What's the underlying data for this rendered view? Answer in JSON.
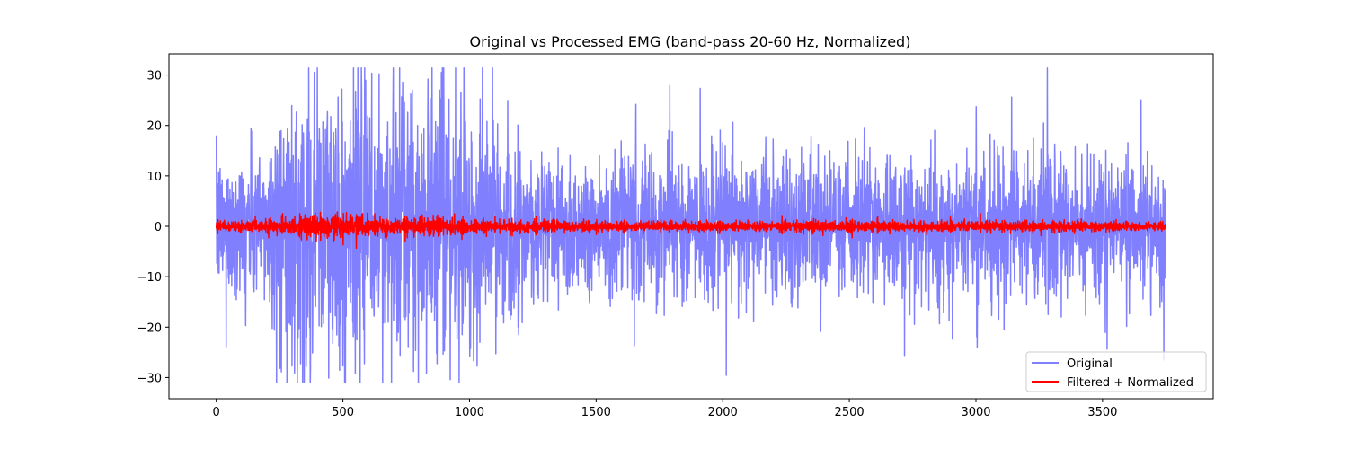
{
  "chart_data": {
    "type": "line",
    "title": "Original vs Processed EMG (band-pass 20-60 Hz, Normalized)",
    "xlabel": "",
    "ylabel": "",
    "xlim": [
      -187,
      3937
    ],
    "ylim": [
      -34.2,
      34.2
    ],
    "x_ticks": [
      0,
      500,
      1000,
      1500,
      2000,
      2500,
      3000,
      3500
    ],
    "y_ticks": [
      30,
      20,
      10,
      0,
      -10,
      -20,
      -30
    ],
    "x_tick_labels": [
      "0",
      "500",
      "1000",
      "1500",
      "2000",
      "2500",
      "3000",
      "3500"
    ],
    "y_tick_labels": [
      "30",
      "20",
      "10",
      "0",
      "−10",
      "−20",
      "−30"
    ],
    "n_points": 3750,
    "grid": false,
    "legend_position": "lower right",
    "series": [
      {
        "name": "Original",
        "color": "#8080ff",
        "clip": [
          -31.0,
          31.4
        ],
        "amplitude_profile": [
          {
            "x": 0,
            "std": 6.5
          },
          {
            "x": 200,
            "std": 8.5
          },
          {
            "x": 280,
            "std": 13
          },
          {
            "x": 400,
            "std": 14
          },
          {
            "x": 550,
            "std": 15
          },
          {
            "x": 650,
            "std": 14
          },
          {
            "x": 900,
            "std": 13
          },
          {
            "x": 1050,
            "std": 11
          },
          {
            "x": 1200,
            "std": 8
          },
          {
            "x": 1500,
            "std": 7
          },
          {
            "x": 2000,
            "std": 7.2
          },
          {
            "x": 2500,
            "std": 7
          },
          {
            "x": 3000,
            "std": 7.3
          },
          {
            "x": 3500,
            "std": 7
          },
          {
            "x": 3749,
            "std": 6.8
          }
        ]
      },
      {
        "name": "Filtered + Normalized",
        "color": "#ff0000",
        "amplitude_profile": [
          {
            "x": 0,
            "std": 0.9
          },
          {
            "x": 200,
            "std": 1.1
          },
          {
            "x": 280,
            "std": 1.6
          },
          {
            "x": 400,
            "std": 1.9
          },
          {
            "x": 550,
            "std": 1.9
          },
          {
            "x": 700,
            "std": 1.6
          },
          {
            "x": 900,
            "std": 1.5
          },
          {
            "x": 1100,
            "std": 1.1
          },
          {
            "x": 1500,
            "std": 0.85
          },
          {
            "x": 2000,
            "std": 0.85
          },
          {
            "x": 3000,
            "std": 0.9
          },
          {
            "x": 3749,
            "std": 0.85
          }
        ]
      }
    ]
  }
}
